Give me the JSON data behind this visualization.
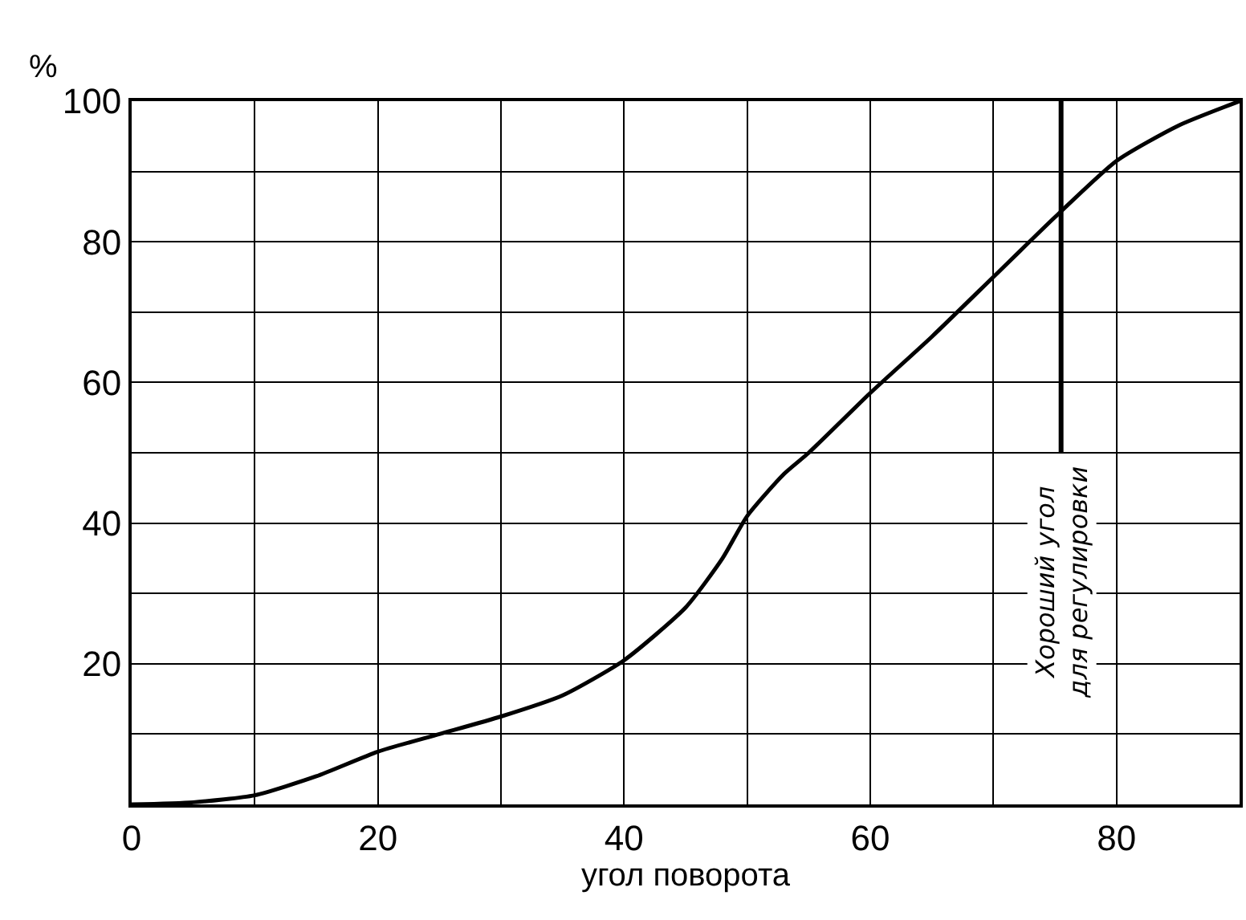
{
  "chart_data": {
    "type": "line",
    "xlabel": "угол поворота",
    "ylabel": "%",
    "x": [
      0,
      5,
      10,
      15,
      20,
      25,
      30,
      35,
      40,
      45,
      48,
      50,
      53,
      55,
      60,
      65,
      70,
      75,
      80,
      85,
      90
    ],
    "series": [
      {
        "color": "#000000",
        "values": [
          0,
          0.3,
          1.3,
          4,
          7.5,
          10,
          12.5,
          15.5,
          20.5,
          28,
          35,
          41,
          47,
          50,
          58.5,
          66.5,
          75,
          83.5,
          91.5,
          96.5,
          100
        ]
      },
      {
        "color": "#000000",
        "x": [
          75.5,
          75.5
        ],
        "values": [
          50,
          100
        ]
      }
    ],
    "annotations": [
      "Хороший угол\nдля регулировки"
    ],
    "xlim": [
      0,
      90
    ],
    "ylim": [
      0,
      100
    ],
    "xticks": [
      0,
      {
        "value": 10,
        "label": null
      },
      20,
      {
        "value": 30,
        "label": null
      },
      40,
      {
        "value": 50,
        "label": null
      },
      60,
      {
        "value": 70,
        "label": null
      },
      80,
      {
        "value": 90,
        "label": null
      }
    ],
    "yticks": [
      {
        "value": 0,
        "label": null
      },
      {
        "value": 10,
        "label": null
      },
      20,
      {
        "value": 30,
        "label": null
      },
      40,
      {
        "value": 50,
        "label": null
      },
      60,
      {
        "value": 70,
        "label": null
      },
      80,
      {
        "value": 90,
        "label": null
      },
      100
    ],
    "grid": true,
    "marker": "none",
    "line_style": "solid"
  }
}
